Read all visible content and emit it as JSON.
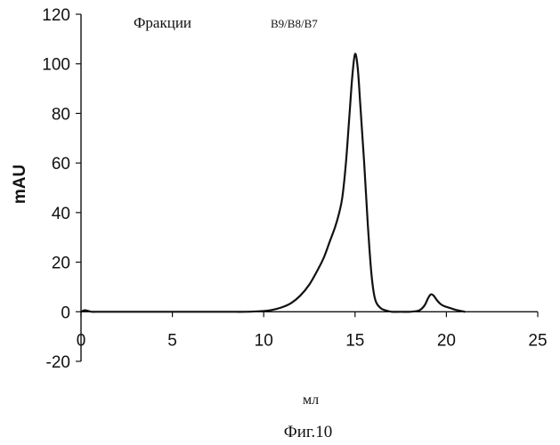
{
  "chart_data": {
    "type": "line",
    "title": "",
    "annotation_left": "Фракции",
    "annotation_right": "B9/B8/B7",
    "xlabel": "мл",
    "ylabel": "mAU",
    "caption": "Фиг.10",
    "xlim": [
      0,
      25
    ],
    "ylim": [
      -20,
      120
    ],
    "x_ticks": [
      "0",
      "5",
      "10",
      "15",
      "20",
      "25"
    ],
    "y_ticks": [
      "-20",
      "0",
      "20",
      "40",
      "60",
      "80",
      "100",
      "120"
    ],
    "grid": false,
    "legend": "none",
    "line_color": "#111111",
    "series": [
      {
        "x": [
          0,
          0.2,
          0.4,
          0.6,
          1,
          2,
          4,
          6,
          8,
          9,
          10,
          10.5,
          11,
          11.5,
          12,
          12.5,
          13,
          13.3,
          13.6,
          13.9,
          14.1,
          14.3,
          14.5,
          14.7,
          14.85,
          15,
          15.15,
          15.3,
          15.5,
          15.7,
          15.9,
          16.1,
          16.4,
          16.7,
          17,
          17.5,
          18,
          18.5,
          18.8,
          19,
          19.15,
          19.3,
          19.5,
          19.7,
          19.9,
          20.2,
          20.5,
          20.8,
          21
        ],
        "y": [
          0,
          0.6,
          0.3,
          0,
          0,
          0,
          0,
          0,
          0,
          0,
          0.3,
          0.8,
          1.8,
          3.5,
          6.5,
          11,
          17.5,
          22,
          28,
          34,
          39,
          46,
          60,
          80,
          95,
          104,
          98,
          82,
          60,
          35,
          15,
          5,
          1.5,
          0.5,
          0,
          0,
          0,
          0.5,
          2.5,
          5.5,
          7,
          6.5,
          4.5,
          3,
          2.2,
          1.5,
          0.8,
          0.3,
          0
        ]
      }
    ]
  }
}
